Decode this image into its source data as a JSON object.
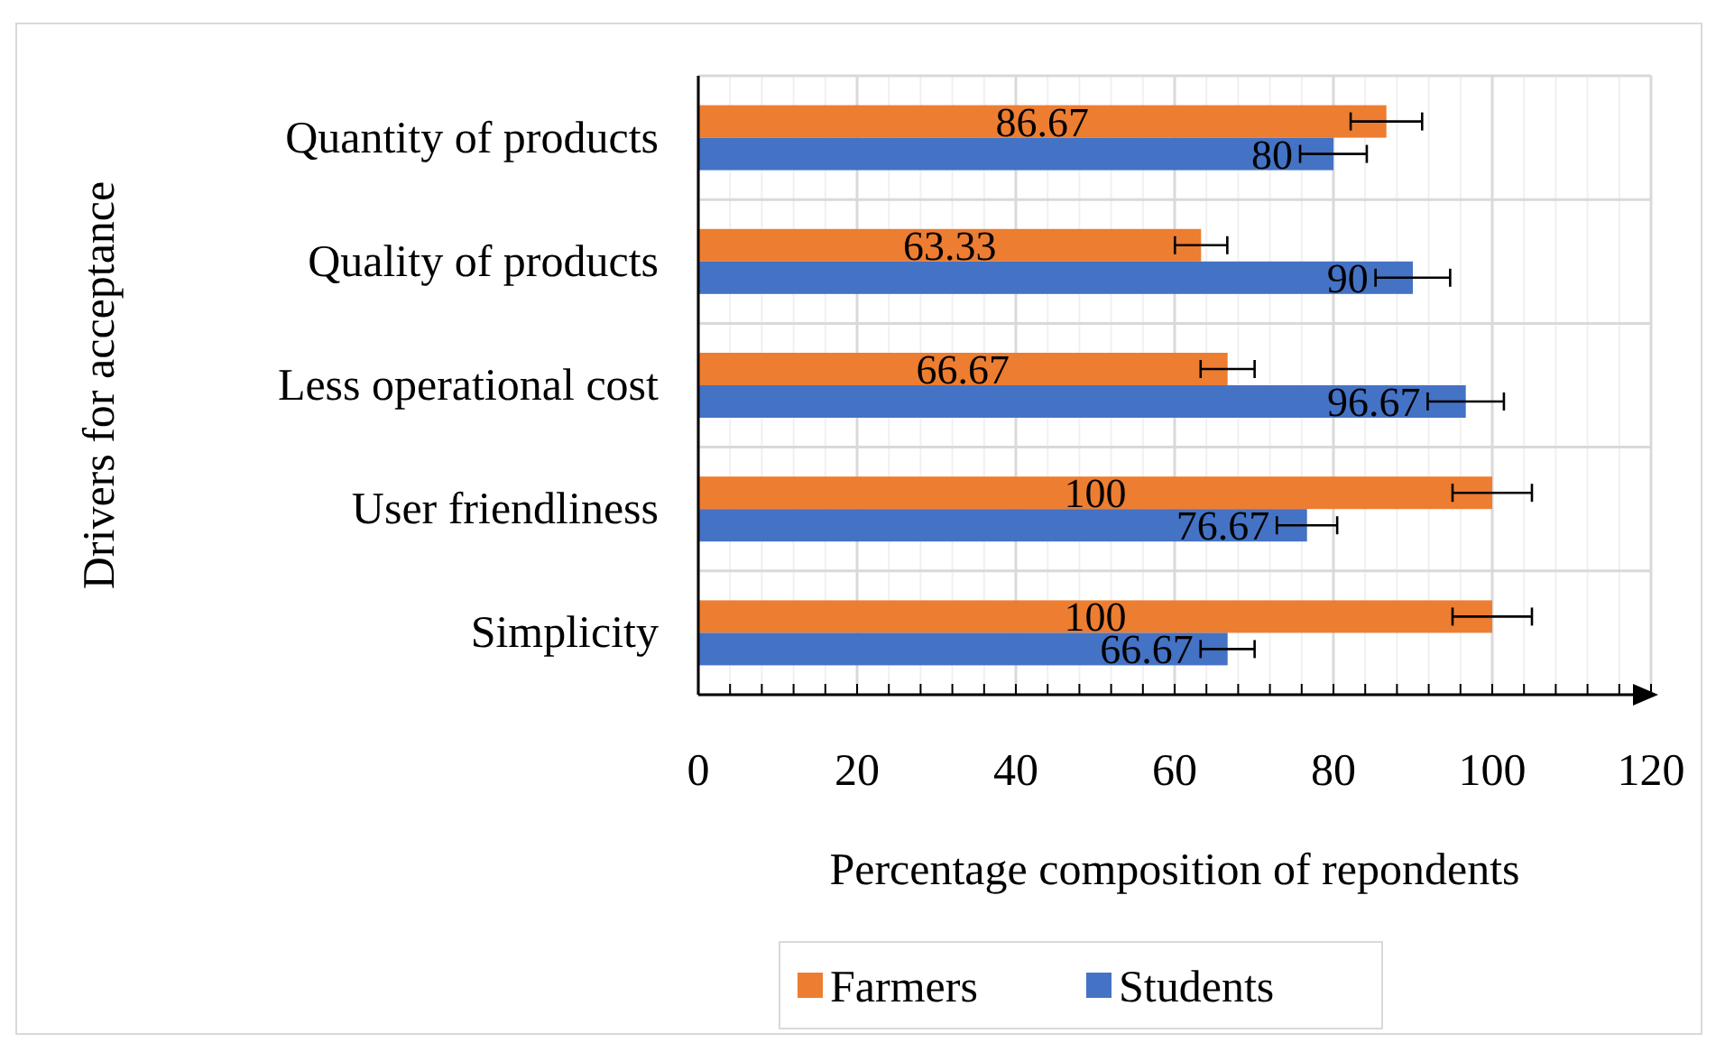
{
  "chart_data": {
    "type": "bar",
    "orientation": "horizontal",
    "xlabel": "Percentage composition of repondents",
    "ylabel": "Drivers for acceptance",
    "categories": [
      "Quantity of products",
      "Quality of products",
      "Less operational cost",
      "User friendliness",
      "Simplicity"
    ],
    "series": [
      {
        "name": "Farmers",
        "color": "#ed7d31",
        "values": [
          86.67,
          63.33,
          66.67,
          100,
          100
        ],
        "errors": [
          4.5,
          3.3,
          3.4,
          5,
          5
        ]
      },
      {
        "name": "Students",
        "color": "#4472c4",
        "values": [
          80,
          90,
          96.67,
          76.67,
          66.67
        ],
        "errors": [
          4.2,
          4.7,
          4.8,
          3.8,
          3.4
        ]
      }
    ],
    "xlim": [
      0,
      120
    ],
    "xticks": [
      0,
      {
        "value": 4,
        "label": null
      },
      {
        "value": 8,
        "label": null
      },
      {
        "value": 12,
        "label": null
      },
      {
        "value": 16,
        "label": null
      },
      20,
      {
        "value": 24,
        "label": null
      },
      {
        "value": 28,
        "label": null
      },
      {
        "value": 32,
        "label": null
      },
      {
        "value": 36,
        "label": null
      },
      40,
      {
        "value": 44,
        "label": null
      },
      {
        "value": 48,
        "label": null
      },
      {
        "value": 52,
        "label": null
      },
      {
        "value": 56,
        "label": null
      },
      60,
      {
        "value": 64,
        "label": null
      },
      {
        "value": 68,
        "label": null
      },
      {
        "value": 72,
        "label": null
      },
      {
        "value": 76,
        "label": null
      },
      80,
      {
        "value": 84,
        "label": null
      },
      {
        "value": 88,
        "label": null
      },
      {
        "value": 92,
        "label": null
      },
      {
        "value": 96,
        "label": null
      },
      100,
      {
        "value": 104,
        "label": null
      },
      {
        "value": 108,
        "label": null
      },
      {
        "value": 112,
        "label": null
      },
      {
        "value": 116,
        "label": null
      },
      120
    ],
    "grid": true,
    "data_labels": true,
    "legend": "bottom"
  }
}
